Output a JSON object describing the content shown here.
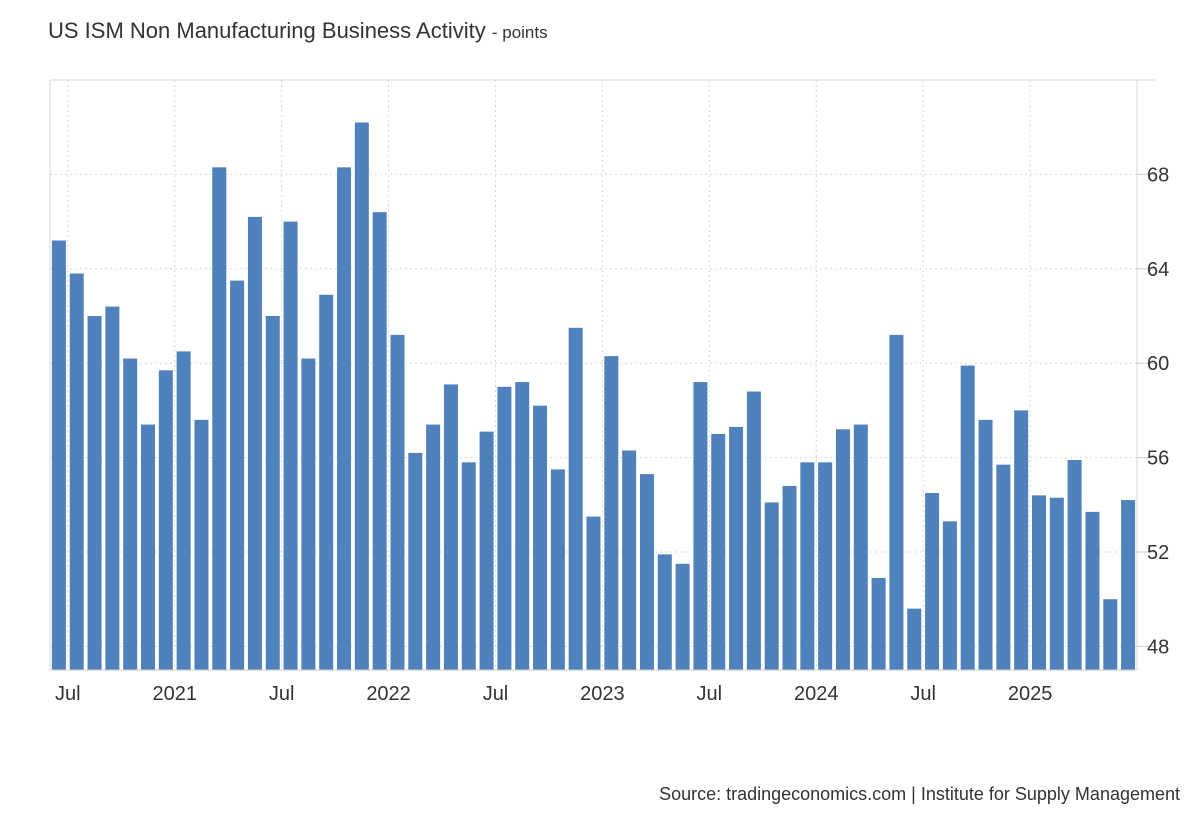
{
  "chart_data": {
    "type": "bar",
    "title": "US ISM Non Manufacturing Business Activity",
    "unit": "- points",
    "source": "Source: tradingeconomics.com | Institute for Supply Management",
    "bar_color": "#4f81bd",
    "grid": true,
    "ylim": [
      47,
      72
    ],
    "y_ticks": [
      48,
      52,
      56,
      60,
      64,
      68
    ],
    "x_tick_labels": [
      {
        "label": "Jul",
        "index": 1
      },
      {
        "label": "2021",
        "index": 7
      },
      {
        "label": "Jul",
        "index": 13
      },
      {
        "label": "2022",
        "index": 19
      },
      {
        "label": "Jul",
        "index": 25
      },
      {
        "label": "2023",
        "index": 31
      },
      {
        "label": "Jul",
        "index": 37
      },
      {
        "label": "2024",
        "index": 43
      },
      {
        "label": "Jul",
        "index": 49
      },
      {
        "label": "2025",
        "index": 55
      }
    ],
    "categories": [
      "2020-06",
      "2020-07",
      "2020-08",
      "2020-09",
      "2020-10",
      "2020-11",
      "2020-12",
      "2021-01",
      "2021-02",
      "2021-03",
      "2021-04",
      "2021-05",
      "2021-06",
      "2021-07",
      "2021-08",
      "2021-09",
      "2021-10",
      "2021-11",
      "2021-12",
      "2022-01",
      "2022-02",
      "2022-03",
      "2022-04",
      "2022-05",
      "2022-06",
      "2022-07",
      "2022-08",
      "2022-09",
      "2022-10",
      "2022-11",
      "2022-12",
      "2023-01",
      "2023-02",
      "2023-03",
      "2023-04",
      "2023-05",
      "2023-06",
      "2023-07",
      "2023-08",
      "2023-09",
      "2023-10",
      "2023-11",
      "2023-12",
      "2024-01",
      "2024-02",
      "2024-03",
      "2024-04",
      "2024-05",
      "2024-06",
      "2024-07",
      "2024-08",
      "2024-09",
      "2024-10",
      "2024-11",
      "2024-12",
      "2025-01",
      "2025-02",
      "2025-03",
      "2025-04",
      "2025-05",
      "2025-06"
    ],
    "values": [
      65.2,
      63.8,
      62.0,
      62.4,
      60.2,
      57.4,
      59.7,
      60.5,
      57.6,
      68.3,
      63.5,
      66.2,
      62.0,
      66.0,
      60.2,
      62.9,
      68.3,
      70.2,
      66.4,
      61.2,
      56.2,
      57.4,
      59.1,
      55.8,
      57.1,
      59.0,
      59.2,
      58.2,
      55.5,
      61.5,
      53.5,
      60.3,
      56.3,
      55.3,
      51.9,
      51.5,
      59.2,
      57.0,
      57.3,
      58.8,
      54.1,
      54.8,
      55.8,
      55.8,
      57.2,
      57.4,
      50.9,
      61.2,
      49.6,
      54.5,
      53.3,
      59.9,
      57.6,
      55.7,
      58.0,
      54.4,
      54.3,
      55.9,
      53.7,
      50.0,
      54.2
    ]
  }
}
